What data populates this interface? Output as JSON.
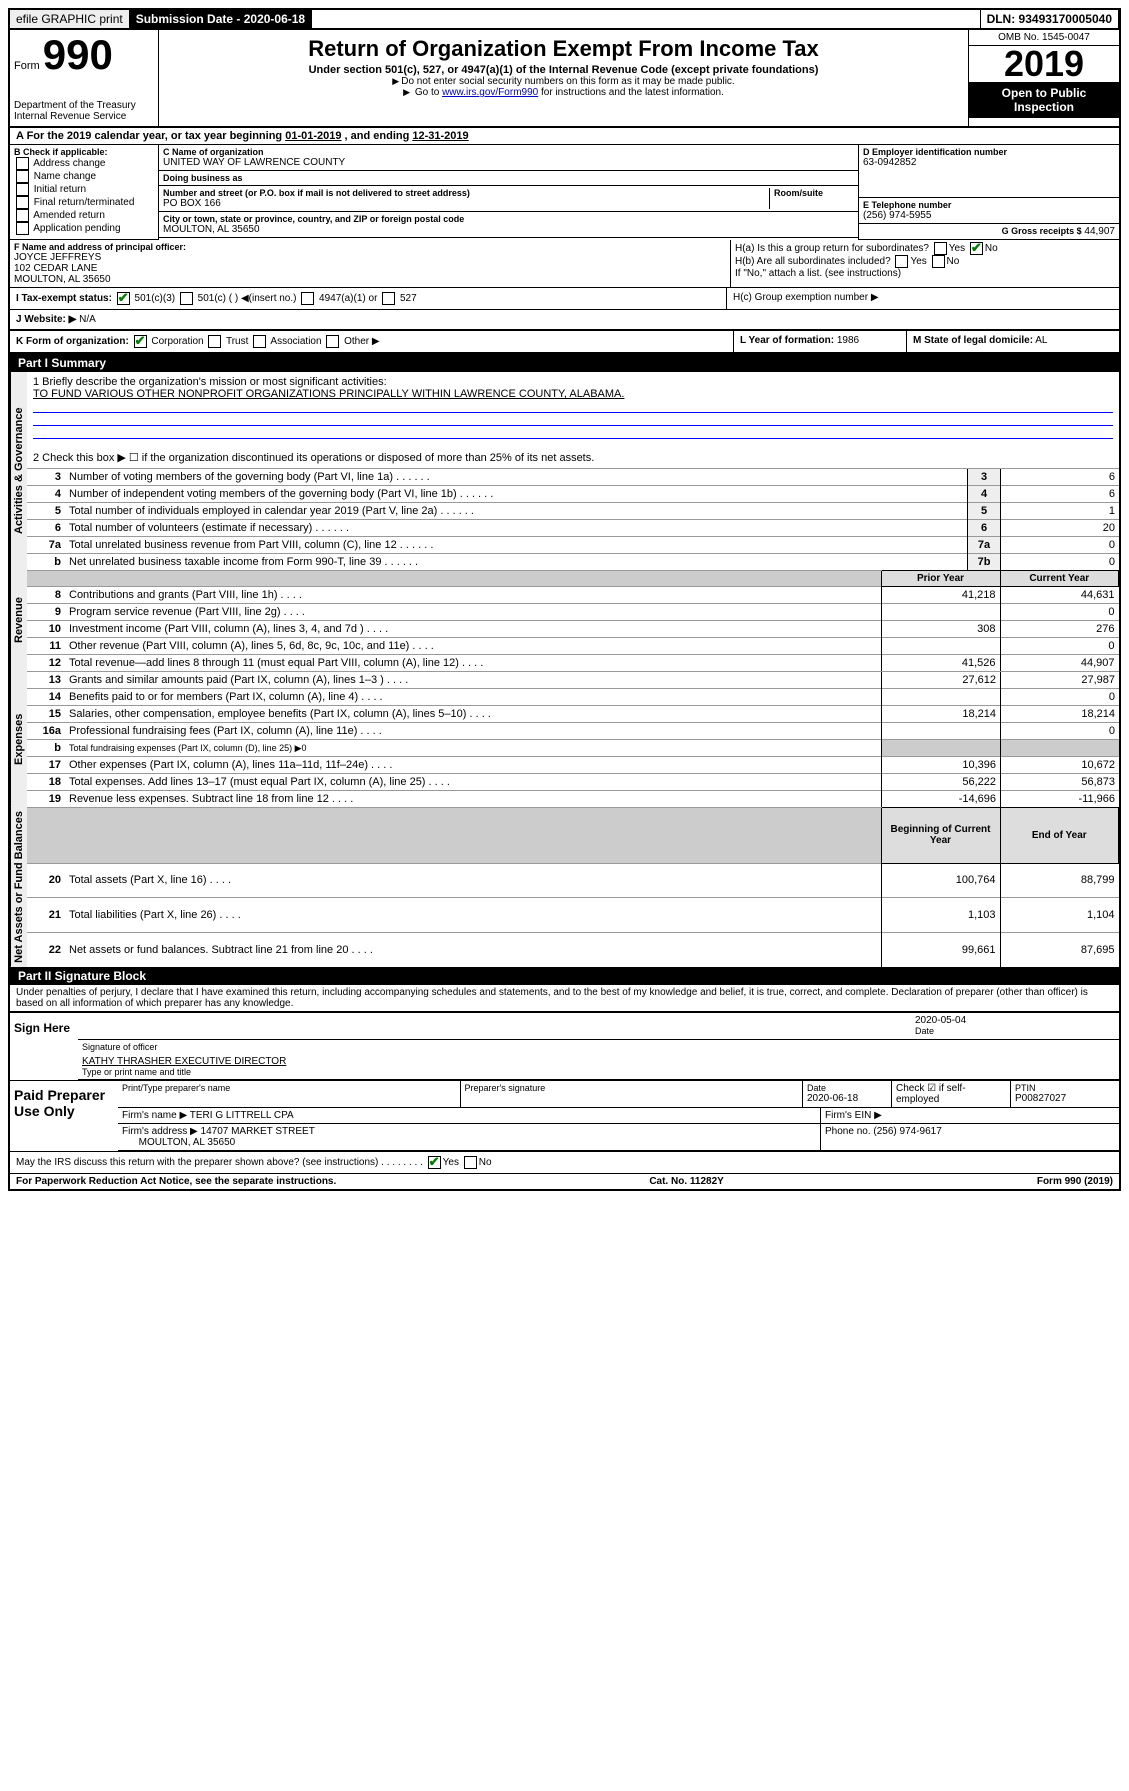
{
  "top": {
    "efile": "efile GRAPHIC print",
    "submission_label": "Submission Date - 2020-06-18",
    "dln_label": "DLN: 93493170005040"
  },
  "header": {
    "form_word": "Form",
    "form_no": "990",
    "dept": "Department of the Treasury\nInternal Revenue Service",
    "title": "Return of Organization Exempt From Income Tax",
    "sub": "Under section 501(c), 527, or 4947(a)(1) of the Internal Revenue Code (except private foundations)",
    "note1": "Do not enter social security numbers on this form as it may be made public.",
    "note2_a": "Go to ",
    "note2_link": "www.irs.gov/Form990",
    "note2_b": " for instructions and the latest information.",
    "omb": "OMB No. 1545-0047",
    "year": "2019",
    "open": "Open to Public Inspection"
  },
  "period": {
    "text_a": "A For the 2019 calendar year, or tax year beginning ",
    "begin": "01-01-2019",
    "text_b": " , and ending ",
    "end": "12-31-2019"
  },
  "sectionB": {
    "title": "B Check if applicable:",
    "opts": [
      "Address change",
      "Name change",
      "Initial return",
      "Final return/terminated",
      "Amended return",
      "Application pending"
    ]
  },
  "sectionC": {
    "name_label": "C Name of organization",
    "name": "UNITED WAY OF LAWRENCE COUNTY",
    "dba_label": "Doing business as",
    "street_label": "Number and street (or P.O. box if mail is not delivered to street address)",
    "room_label": "Room/suite",
    "street": "PO BOX 166",
    "city_label": "City or town, state or province, country, and ZIP or foreign postal code",
    "city": "MOULTON, AL  35650"
  },
  "sectionD": {
    "label": "D Employer identification number",
    "val": "63-0942852"
  },
  "sectionE": {
    "label": "E Telephone number",
    "val": "(256) 974-5955"
  },
  "sectionG": {
    "label": "G Gross receipts $",
    "val": "44,907"
  },
  "sectionF": {
    "label": "F Name and address of principal officer:",
    "name": "JOYCE JEFFREYS",
    "addr1": "102 CEDAR LANE",
    "addr2": "MOULTON, AL  35650"
  },
  "sectionH": {
    "a": "H(a)  Is this a group return for subordinates?",
    "b": "H(b)  Are all subordinates included?",
    "b_note": "If \"No,\" attach a list. (see instructions)",
    "c": "H(c)  Group exemption number ▶",
    "yes": "Yes",
    "no": "No"
  },
  "sectionI": {
    "label": "I Tax-exempt status:",
    "opt1": "501(c)(3)",
    "opt2": "501(c) (  ) ◀(insert no.)",
    "opt3": "4947(a)(1) or",
    "opt4": "527"
  },
  "sectionJ": {
    "label": "J  Website: ▶",
    "val": "N/A"
  },
  "sectionK": {
    "label": "K Form of organization:",
    "opts": [
      "Corporation",
      "Trust",
      "Association",
      "Other ▶"
    ]
  },
  "sectionL": {
    "label": "L Year of formation:",
    "val": "1986"
  },
  "sectionM": {
    "label": "M State of legal domicile:",
    "val": "AL"
  },
  "part1": {
    "head": "Part I    Summary",
    "l1_label": "1  Briefly describe the organization's mission or most significant activities:",
    "l1_val": "TO FUND VARIOUS OTHER NONPROFIT ORGANIZATIONS PRINCIPALLY WITHIN LAWRENCE COUNTY, ALABAMA.",
    "l2": "2  Check this box ▶ ☐  if the organization discontinued its operations or disposed of more than 25% of its net assets.",
    "rows_gov": [
      {
        "n": "3",
        "t": "Number of voting members of the governing body (Part VI, line 1a)",
        "ln": "3",
        "v": "6"
      },
      {
        "n": "4",
        "t": "Number of independent voting members of the governing body (Part VI, line 1b)",
        "ln": "4",
        "v": "6"
      },
      {
        "n": "5",
        "t": "Total number of individuals employed in calendar year 2019 (Part V, line 2a)",
        "ln": "5",
        "v": "1"
      },
      {
        "n": "6",
        "t": "Total number of volunteers (estimate if necessary)",
        "ln": "6",
        "v": "20"
      },
      {
        "n": "7a",
        "t": "Total unrelated business revenue from Part VIII, column (C), line 12",
        "ln": "7a",
        "v": "0"
      },
      {
        "n": "b",
        "t": "Net unrelated business taxable income from Form 990-T, line 39",
        "ln": "7b",
        "v": "0"
      }
    ],
    "col_prior": "Prior Year",
    "col_curr": "Current Year",
    "rows_rev": [
      {
        "n": "8",
        "t": "Contributions and grants (Part VIII, line 1h)",
        "p": "41,218",
        "c": "44,631"
      },
      {
        "n": "9",
        "t": "Program service revenue (Part VIII, line 2g)",
        "p": "",
        "c": "0"
      },
      {
        "n": "10",
        "t": "Investment income (Part VIII, column (A), lines 3, 4, and 7d )",
        "p": "308",
        "c": "276"
      },
      {
        "n": "11",
        "t": "Other revenue (Part VIII, column (A), lines 5, 6d, 8c, 9c, 10c, and 11e)",
        "p": "",
        "c": "0"
      },
      {
        "n": "12",
        "t": "Total revenue—add lines 8 through 11 (must equal Part VIII, column (A), line 12)",
        "p": "41,526",
        "c": "44,907"
      }
    ],
    "rows_exp": [
      {
        "n": "13",
        "t": "Grants and similar amounts paid (Part IX, column (A), lines 1–3 )",
        "p": "27,612",
        "c": "27,987"
      },
      {
        "n": "14",
        "t": "Benefits paid to or for members (Part IX, column (A), line 4)",
        "p": "",
        "c": "0"
      },
      {
        "n": "15",
        "t": "Salaries, other compensation, employee benefits (Part IX, column (A), lines 5–10)",
        "p": "18,214",
        "c": "18,214"
      },
      {
        "n": "16a",
        "t": "Professional fundraising fees (Part IX, column (A), line 11e)",
        "p": "",
        "c": "0"
      },
      {
        "n": "b",
        "t": "Total fundraising expenses (Part IX, column (D), line 25) ▶0",
        "p": null,
        "c": null,
        "shade": true
      },
      {
        "n": "17",
        "t": "Other expenses (Part IX, column (A), lines 11a–11d, 11f–24e)",
        "p": "10,396",
        "c": "10,672"
      },
      {
        "n": "18",
        "t": "Total expenses. Add lines 13–17 (must equal Part IX, column (A), line 25)",
        "p": "56,222",
        "c": "56,873"
      },
      {
        "n": "19",
        "t": "Revenue less expenses. Subtract line 18 from line 12",
        "p": "-14,696",
        "c": "-11,966"
      }
    ],
    "col_beg": "Beginning of Current Year",
    "col_end": "End of Year",
    "rows_net": [
      {
        "n": "20",
        "t": "Total assets (Part X, line 16)",
        "p": "100,764",
        "c": "88,799"
      },
      {
        "n": "21",
        "t": "Total liabilities (Part X, line 26)",
        "p": "1,103",
        "c": "1,104"
      },
      {
        "n": "22",
        "t": "Net assets or fund balances. Subtract line 21 from line 20",
        "p": "99,661",
        "c": "87,695"
      }
    ],
    "side_gov": "Activities & Governance",
    "side_rev": "Revenue",
    "side_exp": "Expenses",
    "side_net": "Net Assets or Fund Balances"
  },
  "part2": {
    "head": "Part II    Signature Block",
    "declare": "Under penalties of perjury, I declare that I have examined this return, including accompanying schedules and statements, and to the best of my knowledge and belief, it is true, correct, and complete. Declaration of preparer (other than officer) is based on all information of which preparer has any knowledge.",
    "sign_here": "Sign Here",
    "sig_date": "2020-05-04",
    "sig_officer_label": "Signature of officer",
    "date_label": "Date",
    "officer_name": "KATHY THRASHER  EXECUTIVE DIRECTOR",
    "type_label": "Type or print name and title",
    "paid": "Paid Preparer Use Only",
    "prep_name_label": "Print/Type preparer's name",
    "prep_sig_label": "Preparer's signature",
    "prep_date_label": "Date",
    "prep_date": "2020-06-18",
    "check_self": "Check ☑ if self-employed",
    "ptin_label": "PTIN",
    "ptin": "P00827027",
    "firm_name_label": "Firm's name   ▶",
    "firm_name": "TERI G LITTRELL CPA",
    "firm_ein_label": "Firm's EIN ▶",
    "firm_addr_label": "Firm's address ▶",
    "firm_addr": "14707 MARKET STREET",
    "firm_city": "MOULTON, AL  35650",
    "firm_phone_label": "Phone no.",
    "firm_phone": "(256) 974-9617",
    "discuss": "May the IRS discuss this return with the preparer shown above? (see instructions)",
    "yes": "Yes",
    "no": "No"
  },
  "footer": {
    "left": "For Paperwork Reduction Act Notice, see the separate instructions.",
    "mid": "Cat. No. 11282Y",
    "right": "Form 990 (2019)"
  }
}
